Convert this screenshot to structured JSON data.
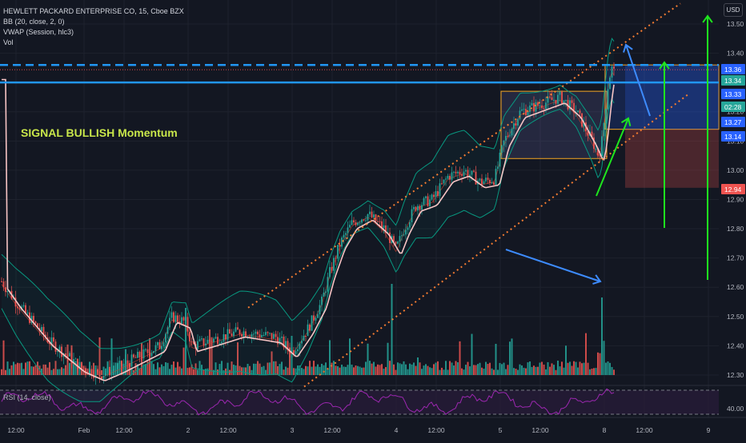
{
  "header": {
    "symbol_line": "HEWLETT PACKARD ENTERPRISE CO, 15, Cboe BZX",
    "indicators": [
      "BB (20, close, 2, 0)",
      "VWAP (Session, hlc3)",
      "Vol"
    ]
  },
  "annotation": {
    "signal_text": "SIGNAL BULLISH Momentum"
  },
  "rsi_label": "RSI (14, close)",
  "currency_button": "USD",
  "colors": {
    "background": "#131722",
    "up": "#26a69a",
    "down": "#ef5350",
    "bb_band": "#089981",
    "vwap": "#f7c4c4",
    "channel": "#f57c32",
    "blue_line": "#2196f3",
    "arrow_green": "#1ee61e",
    "arrow_blue": "#3d8bfd",
    "rsi_line": "#9c27b0",
    "signal_text": "#c8e64a"
  },
  "chart_data": {
    "type": "candlestick",
    "y_axis": {
      "ylim": [
        12.26,
        13.57
      ],
      "ticks": [
        13.5,
        13.4,
        13.3,
        13.2,
        13.1,
        13.0,
        12.9,
        12.8,
        12.7,
        12.6,
        12.5,
        12.4,
        12.3
      ]
    },
    "x_axis": {
      "ticks": [
        "12:00",
        "Feb",
        "12:00",
        "2",
        "12:00",
        "3",
        "12:00",
        "4",
        "12:00",
        "5",
        "12:00",
        "8",
        "12:00",
        "9"
      ]
    },
    "price_badges": [
      {
        "value": "13.36",
        "color": "#2962ff"
      },
      {
        "value": "13.34",
        "color": "#26a69a"
      },
      {
        "value": "13.33",
        "color": "#2962ff"
      },
      {
        "value": "02:28",
        "color": "#26a69a"
      },
      {
        "value": "13.27",
        "color": "#2962ff"
      },
      {
        "value": "13.14",
        "color": "#2962ff"
      },
      {
        "value": "12.94",
        "color": "#ef5350"
      }
    ],
    "horizontal_lines": [
      {
        "price": 13.36,
        "style": "dashed"
      },
      {
        "price": 13.33,
        "style": "solid"
      }
    ],
    "channel": {
      "upper": [
        {
          "date": "2/2 09:30",
          "price": 12.53
        },
        {
          "date": "2/8 15:30",
          "price": 13.57
        }
      ],
      "lower": [
        {
          "date": "2/2 15:00",
          "price": 12.26
        },
        {
          "date": "2/8 15:30",
          "price": 13.26
        }
      ]
    },
    "boxes": [
      {
        "from": "2/5 09:45",
        "to": "2/8 09:30",
        "top": 13.27,
        "bottom": 13.04
      },
      {
        "from": "2/8 09:45",
        "to": "2/8 14:30",
        "top": 13.36,
        "bottom": 13.14
      }
    ],
    "rsi": {
      "level_upper": 70,
      "level_lower": 30,
      "tick": "40.00",
      "current": 62
    }
  }
}
